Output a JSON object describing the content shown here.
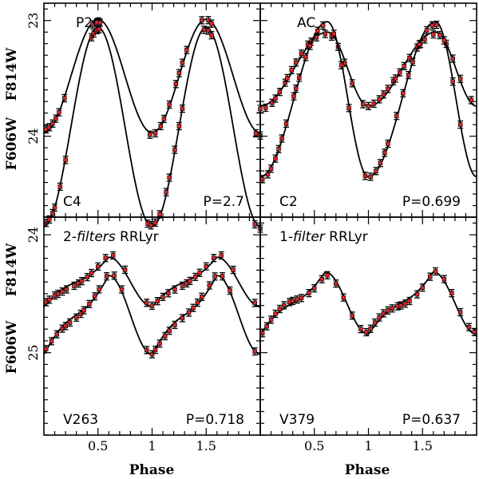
{
  "chart_data": [
    {
      "type": "scatter",
      "panel": "top-left",
      "title": "P2C",
      "star": "C4",
      "period_label": "P=2.7",
      "ylim": [
        22.85,
        24.7
      ],
      "yticks": [
        {
          "value": 23,
          "label": "23"
        },
        {
          "value": 24,
          "label": "24"
        }
      ],
      "xlim": [
        0,
        2
      ],
      "xticks": [
        {
          "value": 0.5,
          "label": ""
        },
        {
          "value": 1,
          "label": ""
        },
        {
          "value": 1.5,
          "label": ""
        }
      ],
      "series": [
        {
          "name": "F814W",
          "mean": 23.48,
          "amp": 0.98,
          "curve": "triangle",
          "phase": [
            0.02,
            0.05,
            0.08,
            0.11,
            0.14,
            0.19,
            0.45,
            0.49,
            0.52,
            0.98,
            1.03,
            1.08,
            1.11,
            1.16,
            1.22,
            1.25,
            1.28,
            1.32,
            1.46,
            1.52,
            1.55,
            1.96,
            2.0
          ]
        },
        {
          "name": "F606W",
          "mean": 23.92,
          "amp": 1.72,
          "curve": "triangle",
          "phase": [
            0.02,
            0.05,
            0.08,
            0.1,
            0.15,
            0.2,
            0.44,
            0.46,
            0.49,
            0.51,
            0.96,
            0.99,
            1.03,
            1.07,
            1.13,
            1.16,
            1.21,
            1.25,
            1.28,
            1.48,
            1.52,
            1.55,
            1.95,
            2.0
          ]
        }
      ]
    },
    {
      "type": "scatter",
      "panel": "top-right",
      "title": "AC",
      "star": "C2",
      "period_label": "P=0.699",
      "ylim": [
        22.85,
        24.7
      ],
      "yticks": [
        {
          "value": 23,
          "label": ""
        },
        {
          "value": 24,
          "label": ""
        }
      ],
      "xlim": [
        0,
        2
      ],
      "xticks": [
        {
          "value": 0.5,
          "label": ""
        },
        {
          "value": 1,
          "label": ""
        },
        {
          "value": 1.5,
          "label": ""
        }
      ],
      "series": [
        {
          "name": "F814W",
          "mean": 23.42,
          "amp": 0.64,
          "curve": "saw",
          "phase": [
            0.0,
            0.05,
            0.11,
            0.14,
            0.18,
            0.23,
            0.25,
            0.29,
            0.33,
            0.38,
            0.44,
            0.47,
            0.52,
            0.6,
            0.66,
            0.72,
            0.78,
            0.85,
            0.95,
            1.0,
            1.05,
            1.1,
            1.14,
            1.18,
            1.23,
            1.25,
            1.29,
            1.33,
            1.38,
            1.45,
            1.48,
            1.52,
            1.6,
            1.66,
            1.72,
            1.78,
            1.85,
            1.95
          ]
        },
        {
          "name": "F606W",
          "mean": 23.68,
          "amp": 1.34,
          "curve": "saw",
          "phase": [
            0.02,
            0.07,
            0.1,
            0.14,
            0.17,
            0.2,
            0.24,
            0.31,
            0.33,
            0.36,
            0.42,
            0.46,
            0.53,
            0.58,
            0.68,
            0.75,
            0.82,
            0.97,
            1.02,
            1.07,
            1.11,
            1.15,
            1.18,
            1.26,
            1.32,
            1.37,
            1.41,
            1.47,
            1.54,
            1.59,
            1.63,
            1.7,
            1.78,
            1.85
          ]
        }
      ]
    },
    {
      "type": "scatter",
      "panel": "bottom-left",
      "title_pre": "2-",
      "title_italic": "filters",
      "title_post": "RRLyr",
      "star": "V263",
      "period_label": "P=0.718",
      "ylim": [
        23.85,
        25.7
      ],
      "yticks": [
        {
          "value": 24,
          "label": "24"
        },
        {
          "value": 25,
          "label": "25"
        }
      ],
      "xlim": [
        0,
        2
      ],
      "xticks": [
        {
          "value": 0.5,
          "label": "0.5"
        },
        {
          "value": 1,
          "label": "1"
        },
        {
          "value": 1.5,
          "label": "1.5"
        }
      ],
      "xlabel": "Phase",
      "series": [
        {
          "name": "F814W",
          "mean": 24.4,
          "amp": 0.42,
          "curve": "rr",
          "phase": [
            0.02,
            0.05,
            0.1,
            0.13,
            0.17,
            0.21,
            0.28,
            0.32,
            0.35,
            0.4,
            0.44,
            0.5,
            0.57,
            0.64,
            0.75,
            0.95,
            1.0,
            1.05,
            1.1,
            1.15,
            1.21,
            1.28,
            1.32,
            1.35,
            1.4,
            1.44,
            1.5,
            1.57,
            1.64,
            1.75,
            1.95
          ]
        },
        {
          "name": "F606W",
          "mean": 24.68,
          "amp": 0.67,
          "curve": "rr",
          "phase": [
            0.02,
            0.07,
            0.12,
            0.17,
            0.2,
            0.24,
            0.3,
            0.34,
            0.37,
            0.42,
            0.47,
            0.51,
            0.58,
            0.65,
            0.72,
            0.95,
            1.0,
            1.03,
            1.07,
            1.12,
            1.16,
            1.21,
            1.28,
            1.34,
            1.38,
            1.42,
            1.46,
            1.53,
            1.58,
            1.65,
            1.72,
            1.95
          ]
        }
      ]
    },
    {
      "type": "scatter",
      "panel": "bottom-right",
      "title_pre": "1-",
      "title_italic": "filter",
      "title_post": "RRLyr",
      "star": "V379",
      "period_label": "P=0.637",
      "ylim": [
        23.85,
        25.7
      ],
      "yticks": [
        {
          "value": 24,
          "label": ""
        },
        {
          "value": 25,
          "label": ""
        }
      ],
      "xlim": [
        0,
        2
      ],
      "xticks": [
        {
          "value": 0.5,
          "label": "0.5"
        },
        {
          "value": 1,
          "label": "1"
        },
        {
          "value": 1.5,
          "label": "1.5"
        }
      ],
      "xlabel": "Phase",
      "series": [
        {
          "name": "F814W",
          "mean": 24.58,
          "amp": 0.53,
          "curve": "rr",
          "phase": [
            0.02,
            0.06,
            0.1,
            0.14,
            0.18,
            0.22,
            0.27,
            0.3,
            0.34,
            0.38,
            0.45,
            0.5,
            0.57,
            0.62,
            0.7,
            0.77,
            0.85,
            0.93,
            0.98,
            1.02,
            1.06,
            1.1,
            1.14,
            1.18,
            1.22,
            1.27,
            1.3,
            1.34,
            1.38,
            1.45,
            1.5,
            1.57,
            1.62,
            1.7,
            1.77,
            1.85,
            1.93,
            1.98
          ]
        }
      ]
    }
  ],
  "y_axis_labels": {
    "upper": "F814W",
    "lower": "F606W"
  },
  "colors": {
    "point_fill": "#d8262a",
    "line": "#000000",
    "background": "#ffffff"
  }
}
